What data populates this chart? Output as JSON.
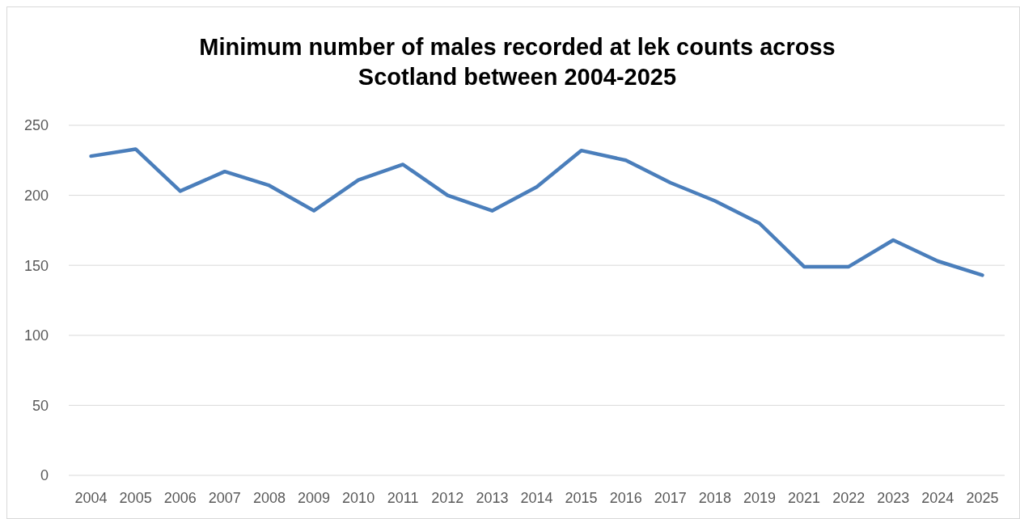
{
  "chart_data": {
    "type": "line",
    "title": "Minimum number of males recorded at lek counts across\nScotland between 2004-2025",
    "categories": [
      "2004",
      "2005",
      "2006",
      "2007",
      "2008",
      "2009",
      "2010",
      "2011",
      "2012",
      "2013",
      "2014",
      "2015",
      "2016",
      "2017",
      "2018",
      "2019",
      "2021",
      "2022",
      "2023",
      "2024",
      "2025"
    ],
    "series": [
      {
        "color": "#4a7ebb",
        "values": [
          228,
          233,
          203,
          217,
          207,
          189,
          211,
          222,
          200,
          189,
          206,
          232,
          225,
          209,
          196,
          180,
          149,
          149,
          168,
          153,
          143
        ]
      }
    ],
    "ylim": [
      0,
      250
    ],
    "yticks": [
      0,
      50,
      100,
      150,
      200,
      250
    ],
    "grid": "y",
    "marker": "none",
    "line_style": "solid"
  }
}
